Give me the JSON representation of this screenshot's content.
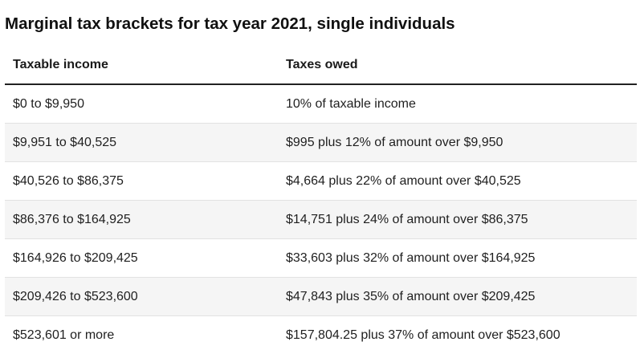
{
  "title": "Marginal tax brackets for tax year 2021, single individuals",
  "table": {
    "headers": [
      "Taxable income",
      "Taxes owed"
    ],
    "rows": [
      [
        "$0 to $9,950",
        "10% of taxable income"
      ],
      [
        "$9,951 to $40,525",
        "$995 plus 12% of amount over $9,950"
      ],
      [
        "$40,526 to $86,375",
        "$4,664 plus 22% of amount over $40,525"
      ],
      [
        "$86,376 to $164,925",
        "$14,751 plus 24% of amount over $86,375"
      ],
      [
        "$164,926 to $209,425",
        "$33,603 plus 32% of amount over $164,925"
      ],
      [
        "$209,426 to $523,600",
        "$47,843 plus 35% of amount over $209,425"
      ],
      [
        "$523,601 or more",
        "$157,804.25 plus 37% of amount over $523,600"
      ]
    ]
  },
  "colors": {
    "header_rule": "#222222",
    "row_stripe": "#f5f5f5",
    "row_divider": "#e2e2e2"
  }
}
